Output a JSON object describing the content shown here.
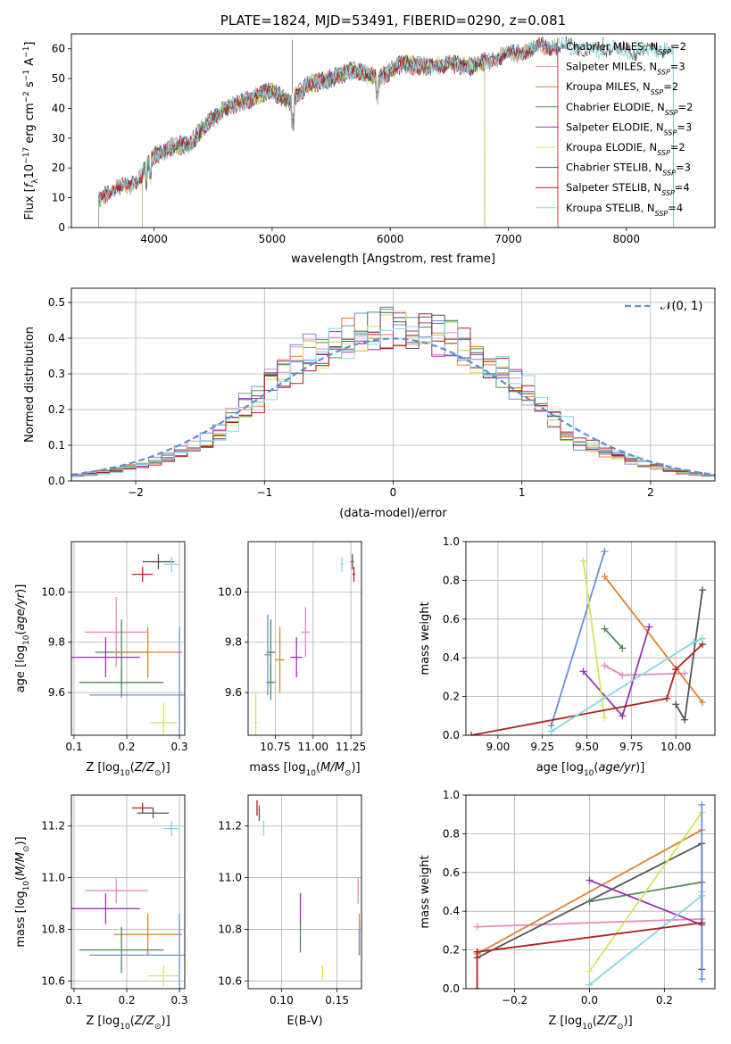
{
  "chart_data": [
    {
      "id": "spectrum",
      "type": "line",
      "title": "PLATE=1824, MJD=53491, FIBERID=0290, z=0.081",
      "xlabel": "wavelength [Angstrom, rest frame]",
      "ylabel": "Flux [f_λ10^-17 erg cm^-2 s^-1 A^-1]",
      "xlim": [
        3300,
        8750
      ],
      "ylim": [
        0,
        65
      ],
      "xticks": [
        4000,
        5000,
        6000,
        7000,
        8000
      ],
      "yticks": [
        0,
        10,
        20,
        30,
        40,
        50,
        60
      ],
      "grid": false,
      "legend_position": "right",
      "approx_continuum": [
        [
          3530,
          9
        ],
        [
          3650,
          13
        ],
        [
          3800,
          14
        ],
        [
          3920,
          19
        ],
        [
          4000,
          24
        ],
        [
          4150,
          27
        ],
        [
          4300,
          28
        ],
        [
          4450,
          35
        ],
        [
          4600,
          40
        ],
        [
          4800,
          43
        ],
        [
          5000,
          46
        ],
        [
          5150,
          42
        ],
        [
          5300,
          48
        ],
        [
          5500,
          50
        ],
        [
          5700,
          53
        ],
        [
          5900,
          50
        ],
        [
          6100,
          55
        ],
        [
          6300,
          54
        ],
        [
          6500,
          55
        ],
        [
          6700,
          54
        ],
        [
          6900,
          57
        ],
        [
          7100,
          59
        ],
        [
          7300,
          61
        ],
        [
          7500,
          61
        ],
        [
          7700,
          60
        ],
        [
          7900,
          60
        ],
        [
          8100,
          59
        ],
        [
          8300,
          60
        ],
        [
          8400,
          59
        ]
      ],
      "series": [
        {
          "name": "Chabrier MILES, N_SSP=2",
          "color": "#6a8fd8",
          "range": [
            3530,
            7420
          ]
        },
        {
          "name": "Salpeter MILES, N_SSP=3",
          "color": "#e589be",
          "range": [
            3530,
            7420
          ]
        },
        {
          "name": "Kroupa MILES, N_SSP=2",
          "color": "#e2802f",
          "range": [
            3530,
            7420
          ]
        },
        {
          "name": "Chabrier ELODIE, N_SSP=2",
          "color": "#4f8a5a",
          "range": [
            3900,
            6800
          ]
        },
        {
          "name": "Salpeter ELODIE, N_SSP=3",
          "color": "#9b32b5",
          "range": [
            3900,
            6800
          ]
        },
        {
          "name": "Kroupa ELODIE, N_SSP=2",
          "color": "#d4e45a",
          "range": [
            3900,
            6800
          ]
        },
        {
          "name": "Chabrier STELIB, N_SSP=3",
          "color": "#555555",
          "range": [
            3530,
            8400
          ]
        },
        {
          "name": "Salpeter STELIB, N_SSP=4",
          "color": "#b22020",
          "range": [
            3530,
            7420
          ]
        },
        {
          "name": "Kroupa STELIB, N_SSP=4",
          "color": "#7fd8e0",
          "range": [
            3530,
            8400
          ]
        }
      ],
      "legend": [
        {
          "pre": "Chabrier MILES, N",
          "sub": "SSP",
          "post": "=2",
          "color": "#6a8fd8"
        },
        {
          "pre": "Salpeter MILES, N",
          "sub": "SSP",
          "post": "=3",
          "color": "#e589be"
        },
        {
          "pre": "Kroupa MILES, N",
          "sub": "SSP",
          "post": "=2",
          "color": "#e2802f"
        },
        {
          "pre": "Chabrier ELODIE, N",
          "sub": "SSP",
          "post": "=2",
          "color": "#4f8a5a"
        },
        {
          "pre": "Salpeter ELODIE, N",
          "sub": "SSP",
          "post": "=3",
          "color": "#9b32b5"
        },
        {
          "pre": "Kroupa ELODIE, N",
          "sub": "SSP",
          "post": "=2",
          "color": "#d4e45a"
        },
        {
          "pre": "Chabrier STELIB, N",
          "sub": "SSP",
          "post": "=3",
          "color": "#555555"
        },
        {
          "pre": "Salpeter STELIB, N",
          "sub": "SSP",
          "post": "=4",
          "color": "#b22020"
        },
        {
          "pre": "Kroupa STELIB, N",
          "sub": "SSP",
          "post": "=4",
          "color": "#7fd8e0"
        }
      ]
    },
    {
      "id": "residuals",
      "type": "line",
      "xlabel": "(data-model)/error",
      "ylabel": "Normed distribution",
      "xlim": [
        -2.5,
        2.5
      ],
      "ylim": [
        0,
        0.54
      ],
      "xticks": [
        -2,
        -1,
        0,
        1,
        2
      ],
      "yticks": [
        0.0,
        0.1,
        0.2,
        0.3,
        0.4,
        0.5
      ],
      "grid": true,
      "legend_position": "top-right",
      "legend_label": "𝒩(0, 1)",
      "reference_curve": {
        "type": "gaussian",
        "mean": 0,
        "sigma": 1,
        "color": "#5b8fd9"
      },
      "bin_width": 0.1,
      "histogram_colors": [
        "#6a8fd8",
        "#e589be",
        "#e2802f",
        "#4f8a5a",
        "#9b32b5",
        "#d4e45a",
        "#555555",
        "#b22020",
        "#7fd8e0"
      ]
    },
    {
      "id": "age_vs_Z",
      "type": "scatter",
      "xlabel": "Z [log10(Z/Z⊙)]",
      "ylabel": "age [log10(age/yr)]",
      "xlim": [
        0.095,
        0.31
      ],
      "ylim": [
        9.43,
        10.2
      ],
      "xticks": [
        0.1,
        0.2,
        0.3
      ],
      "yticks": [
        9.6,
        9.8,
        10.0
      ],
      "grid": true,
      "points": [
        {
          "x": 0.26,
          "y": 10.12,
          "xerr": 0.03,
          "yerr": 0.03,
          "color": "#555555"
        },
        {
          "x": 0.285,
          "y": 10.11,
          "xerr": 0.015,
          "yerr": 0.03,
          "color": "#7fd8e0"
        },
        {
          "x": 0.23,
          "y": 10.07,
          "xerr": 0.02,
          "yerr": 0.03,
          "color": "#b22020"
        },
        {
          "x": 0.18,
          "y": 9.84,
          "xerr": 0.06,
          "yerr": 0.14,
          "color": "#e589be"
        },
        {
          "x": 0.19,
          "y": 9.76,
          "xerr": 0.05,
          "yerr": 0.13,
          "color": "#4f8a5a"
        },
        {
          "x": 0.24,
          "y": 9.76,
          "xerr": 0.065,
          "yerr": 0.1,
          "color": "#e2802f"
        },
        {
          "x": 0.16,
          "y": 9.74,
          "xerr": 0.065,
          "yerr": 0.08,
          "color": "#9b32b5"
        },
        {
          "x": 0.19,
          "y": 9.64,
          "xerr": 0.08,
          "yerr": 0.06,
          "color": "#4f8a5a"
        },
        {
          "x": 0.3,
          "y": 9.59,
          "xerr": 0.17,
          "yerr": 0.27,
          "color": "#6a8fd8"
        },
        {
          "x": 0.27,
          "y": 9.48,
          "xerr": 0.025,
          "yerr": 0.08,
          "color": "#d4e45a"
        }
      ]
    },
    {
      "id": "age_vs_mass",
      "type": "scatter",
      "xlabel": "mass [log10(M/M⊙)]",
      "ylabel": "",
      "xlim": [
        10.57,
        11.32
      ],
      "ylim": [
        9.43,
        10.2
      ],
      "xticks": [
        10.75,
        11.0,
        11.25
      ],
      "yticks": [
        9.6,
        9.8,
        10.0
      ],
      "grid": true,
      "points": [
        {
          "x": 11.26,
          "y": 10.12,
          "xerr": 0.01,
          "yerr": 0.03,
          "color": "#555555"
        },
        {
          "x": 11.19,
          "y": 10.11,
          "xerr": 0.01,
          "yerr": 0.03,
          "color": "#7fd8e0"
        },
        {
          "x": 11.27,
          "y": 10.07,
          "xerr": 0.01,
          "yerr": 0.03,
          "color": "#b22020"
        },
        {
          "x": 10.95,
          "y": 9.84,
          "xerr": 0.03,
          "yerr": 0.1,
          "color": "#e589be"
        },
        {
          "x": 10.72,
          "y": 9.76,
          "xerr": 0.03,
          "yerr": 0.13,
          "color": "#4f8a5a"
        },
        {
          "x": 10.78,
          "y": 9.73,
          "xerr": 0.03,
          "yerr": 0.13,
          "color": "#e2802f"
        },
        {
          "x": 10.89,
          "y": 9.74,
          "xerr": 0.04,
          "yerr": 0.08,
          "color": "#9b32b5"
        },
        {
          "x": 10.72,
          "y": 9.64,
          "xerr": 0.03,
          "yerr": 0.07,
          "color": "#4f8a5a"
        },
        {
          "x": 10.7,
          "y": 9.75,
          "xerr": 0.02,
          "yerr": 0.16,
          "color": "#6a8fd8"
        },
        {
          "x": 10.62,
          "y": 9.48,
          "xerr": 0.01,
          "yerr": 0.12,
          "color": "#d4e45a"
        }
      ]
    },
    {
      "id": "weight_vs_age",
      "type": "line",
      "xlabel": "age [log10(age/yr)]",
      "ylabel": "mass weight",
      "xlim": [
        8.82,
        10.22
      ],
      "ylim": [
        0,
        1
      ],
      "xticks": [
        9.0,
        9.25,
        9.5,
        9.75,
        10.0
      ],
      "yticks": [
        0.0,
        0.2,
        0.4,
        0.6,
        0.8,
        1.0
      ],
      "grid": true,
      "series": [
        {
          "color": "#6a8fd8",
          "x": [
            9.3,
            9.6
          ],
          "y": [
            0.05,
            0.95
          ]
        },
        {
          "color": "#e589be",
          "x": [
            9.6,
            9.7,
            10.05
          ],
          "y": [
            0.36,
            0.31,
            0.32
          ]
        },
        {
          "color": "#e2802f",
          "x": [
            9.6,
            10.15
          ],
          "y": [
            0.82,
            0.17
          ]
        },
        {
          "color": "#4f8a5a",
          "x": [
            9.6,
            9.7
          ],
          "y": [
            0.55,
            0.45
          ]
        },
        {
          "color": "#9b32b5",
          "x": [
            9.48,
            9.7,
            9.85
          ],
          "y": [
            0.33,
            0.1,
            0.56
          ]
        },
        {
          "color": "#d4e45a",
          "x": [
            9.48,
            9.6
          ],
          "y": [
            0.9,
            0.09
          ]
        },
        {
          "color": "#555555",
          "x": [
            10.0,
            10.05,
            10.15
          ],
          "y": [
            0.16,
            0.08,
            0.75
          ]
        },
        {
          "color": "#b22020",
          "x": [
            8.85,
            9.95,
            10.0,
            10.15
          ],
          "y": [
            0.0,
            0.19,
            0.34,
            0.47
          ]
        },
        {
          "color": "#7fd8e0",
          "x": [
            9.3,
            10.1,
            10.15
          ],
          "y": [
            0.02,
            0.48,
            0.5
          ]
        }
      ]
    },
    {
      "id": "mass_vs_Z",
      "type": "scatter",
      "xlabel": "Z [log10(Z/Z⊙)]",
      "ylabel": "mass [log10(M/M⊙)]",
      "xlim": [
        0.095,
        0.31
      ],
      "ylim": [
        10.57,
        11.32
      ],
      "xticks": [
        0.1,
        0.2,
        0.3
      ],
      "yticks": [
        10.6,
        10.8,
        11.0,
        11.2
      ],
      "grid": true,
      "points": [
        {
          "x": 0.25,
          "y": 11.25,
          "xerr": 0.03,
          "yerr": 0.02,
          "color": "#555555"
        },
        {
          "x": 0.23,
          "y": 11.27,
          "xerr": 0.02,
          "yerr": 0.02,
          "color": "#b22020"
        },
        {
          "x": 0.285,
          "y": 11.19,
          "xerr": 0.015,
          "yerr": 0.03,
          "color": "#7fd8e0"
        },
        {
          "x": 0.18,
          "y": 10.95,
          "xerr": 0.06,
          "yerr": 0.05,
          "color": "#e589be"
        },
        {
          "x": 0.16,
          "y": 10.88,
          "xerr": 0.065,
          "yerr": 0.06,
          "color": "#9b32b5"
        },
        {
          "x": 0.24,
          "y": 10.78,
          "xerr": 0.065,
          "yerr": 0.08,
          "color": "#e2802f"
        },
        {
          "x": 0.19,
          "y": 10.72,
          "xerr": 0.08,
          "yerr": 0.09,
          "color": "#4f8a5a"
        },
        {
          "x": 0.3,
          "y": 10.7,
          "xerr": 0.17,
          "yerr": 0.16,
          "color": "#6a8fd8"
        },
        {
          "x": 0.27,
          "y": 10.62,
          "xerr": 0.03,
          "yerr": 0.04,
          "color": "#d4e45a"
        }
      ]
    },
    {
      "id": "mass_vs_EBV",
      "type": "scatter",
      "xlabel": "E(B-V)",
      "ylabel": "",
      "xlim": [
        0.07,
        0.172
      ],
      "ylim": [
        10.57,
        11.32
      ],
      "xticks": [
        0.1,
        0.15
      ],
      "yticks": [
        10.6,
        10.8,
        11.0,
        11.2
      ],
      "grid": true,
      "points": [
        {
          "x": 0.078,
          "y": 11.27,
          "xerr": 0.0,
          "yerr": 0.03,
          "color": "#b22020"
        },
        {
          "x": 0.08,
          "y": 11.25,
          "xerr": 0.0,
          "yerr": 0.03,
          "color": "#555555"
        },
        {
          "x": 0.084,
          "y": 11.19,
          "xerr": 0.0,
          "yerr": 0.03,
          "color": "#7fd8e0"
        },
        {
          "x": 0.169,
          "y": 10.95,
          "xerr": 0.0,
          "yerr": 0.05,
          "color": "#e589be"
        },
        {
          "x": 0.117,
          "y": 10.88,
          "xerr": 0.0,
          "yerr": 0.06,
          "color": "#9b32b5"
        },
        {
          "x": 0.17,
          "y": 10.78,
          "xerr": 0.0,
          "yerr": 0.08,
          "color": "#e2802f"
        },
        {
          "x": 0.117,
          "y": 10.77,
          "xerr": 0.0,
          "yerr": 0.06,
          "color": "#4f8a5a"
        },
        {
          "x": 0.17,
          "y": 10.75,
          "xerr": 0.0,
          "yerr": 0.05,
          "color": "#6a8fd8"
        },
        {
          "x": 0.137,
          "y": 10.63,
          "xerr": 0.0,
          "yerr": 0.03,
          "color": "#d4e45a"
        }
      ]
    },
    {
      "id": "weight_vs_Z",
      "type": "line",
      "xlabel": "Z [log10(Z/Z⊙)]",
      "ylabel": "mass weight",
      "xlim": [
        -0.33,
        0.335
      ],
      "ylim": [
        0,
        1
      ],
      "xticks": [
        -0.2,
        0.0,
        0.2
      ],
      "yticks": [
        0.0,
        0.2,
        0.4,
        0.6,
        0.8,
        1.0
      ],
      "grid": true,
      "series": [
        {
          "color": "#e589be",
          "x": [
            -0.3,
            0.3
          ],
          "y": [
            0.32,
            0.36
          ]
        },
        {
          "color": "#e2802f",
          "x": [
            -0.3,
            0.3
          ],
          "y": [
            0.18,
            0.82
          ]
        },
        {
          "color": "#555555",
          "x": [
            -0.3,
            0.3,
            0.3
          ],
          "y": [
            0.16,
            0.75,
            0.1
          ]
        },
        {
          "color": "#4f8a5a",
          "x": [
            0.0,
            0.3
          ],
          "y": [
            0.45,
            0.55
          ]
        },
        {
          "color": "#9b32b5",
          "x": [
            0.0,
            0.3
          ],
          "y": [
            0.56,
            0.33
          ]
        },
        {
          "color": "#d4e45a",
          "x": [
            0.0,
            0.3
          ],
          "y": [
            0.09,
            0.91
          ]
        },
        {
          "color": "#7fd8e0",
          "x": [
            0.0,
            0.3,
            0.3
          ],
          "y": [
            0.02,
            0.48,
            0.5
          ]
        },
        {
          "color": "#6a8fd8",
          "x": [
            0.3,
            0.3
          ],
          "y": [
            0.05,
            0.95
          ]
        },
        {
          "color": "#b22020",
          "x": [
            -0.3,
            -0.3,
            0.3
          ],
          "y": [
            0.0,
            0.19,
            0.34
          ]
        }
      ]
    }
  ]
}
